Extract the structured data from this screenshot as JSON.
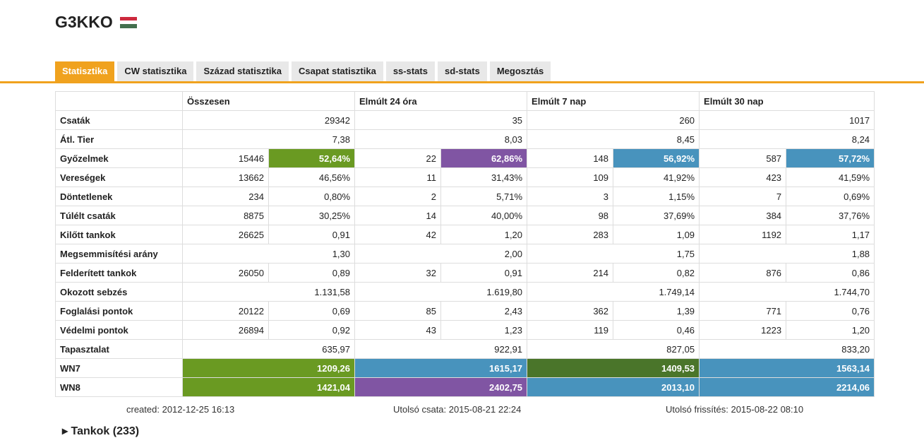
{
  "header": {
    "title": "G3KKO",
    "flag_colors": [
      "#cd2a3e",
      "#ffffff",
      "#436f4d"
    ]
  },
  "tabs": [
    {
      "label": "Statisztika",
      "active": true
    },
    {
      "label": "CW statisztika",
      "active": false
    },
    {
      "label": "Század statisztika",
      "active": false
    },
    {
      "label": "Csapat statisztika",
      "active": false
    },
    {
      "label": "ss-stats",
      "active": false
    },
    {
      "label": "sd-stats",
      "active": false
    },
    {
      "label": "Megosztás",
      "active": false
    }
  ],
  "table": {
    "columns": [
      "",
      "Összesen",
      "Elmúlt 24 óra",
      "Elmúlt 7 nap",
      "Elmúlt 30 nap"
    ],
    "rows": [
      {
        "label": "Csaták",
        "cells": [
          {
            "v": "29342"
          },
          {
            "v": "35"
          },
          {
            "v": "260"
          },
          {
            "v": "1017"
          }
        ]
      },
      {
        "label": "Átl. Tier",
        "cells": [
          {
            "v": "7,38"
          },
          {
            "v": "8,03"
          },
          {
            "v": "8,45"
          },
          {
            "v": "8,24"
          }
        ]
      },
      {
        "label": "Győzelmek",
        "cells": [
          {
            "a": "15446",
            "b": "52,64%",
            "bg": "#6a9a22"
          },
          {
            "a": "22",
            "b": "62,86%",
            "bg": "#8055a3"
          },
          {
            "a": "148",
            "b": "56,92%",
            "bg": "#4893bd"
          },
          {
            "a": "587",
            "b": "57,72%",
            "bg": "#4893bd"
          }
        ]
      },
      {
        "label": "Vereségek",
        "cells": [
          {
            "a": "13662",
            "b": "46,56%"
          },
          {
            "a": "11",
            "b": "31,43%"
          },
          {
            "a": "109",
            "b": "41,92%"
          },
          {
            "a": "423",
            "b": "41,59%"
          }
        ]
      },
      {
        "label": "Döntetlenek",
        "cells": [
          {
            "a": "234",
            "b": "0,80%"
          },
          {
            "a": "2",
            "b": "5,71%"
          },
          {
            "a": "3",
            "b": "1,15%"
          },
          {
            "a": "7",
            "b": "0,69%"
          }
        ]
      },
      {
        "label": "Túlélt csaták",
        "cells": [
          {
            "a": "8875",
            "b": "30,25%"
          },
          {
            "a": "14",
            "b": "40,00%"
          },
          {
            "a": "98",
            "b": "37,69%"
          },
          {
            "a": "384",
            "b": "37,76%"
          }
        ]
      },
      {
        "label": "Kilőtt tankok",
        "cells": [
          {
            "a": "26625",
            "b": "0,91"
          },
          {
            "a": "42",
            "b": "1,20"
          },
          {
            "a": "283",
            "b": "1,09"
          },
          {
            "a": "1192",
            "b": "1,17"
          }
        ]
      },
      {
        "label": "Megsemmisítési arány",
        "cells": [
          {
            "v": "1,30"
          },
          {
            "v": "2,00"
          },
          {
            "v": "1,75"
          },
          {
            "v": "1,88"
          }
        ]
      },
      {
        "label": "Felderített tankok",
        "cells": [
          {
            "a": "26050",
            "b": "0,89"
          },
          {
            "a": "32",
            "b": "0,91"
          },
          {
            "a": "214",
            "b": "0,82"
          },
          {
            "a": "876",
            "b": "0,86"
          }
        ]
      },
      {
        "label": "Okozott sebzés",
        "cells": [
          {
            "v": "1.131,58"
          },
          {
            "v": "1.619,80"
          },
          {
            "v": "1.749,14"
          },
          {
            "v": "1.744,70"
          }
        ]
      },
      {
        "label": "Foglalási pontok",
        "cells": [
          {
            "a": "20122",
            "b": "0,69"
          },
          {
            "a": "85",
            "b": "2,43"
          },
          {
            "a": "362",
            "b": "1,39"
          },
          {
            "a": "771",
            "b": "0,76"
          }
        ]
      },
      {
        "label": "Védelmi pontok",
        "cells": [
          {
            "a": "26894",
            "b": "0,92"
          },
          {
            "a": "43",
            "b": "1,23"
          },
          {
            "a": "119",
            "b": "0,46"
          },
          {
            "a": "1223",
            "b": "1,20"
          }
        ]
      },
      {
        "label": "Tapasztalat",
        "cells": [
          {
            "v": "635,97"
          },
          {
            "v": "922,91"
          },
          {
            "v": "827,05"
          },
          {
            "v": "833,20"
          }
        ]
      },
      {
        "label": "WN7",
        "cells": [
          {
            "v": "1209,26",
            "bg": "#6a9a22"
          },
          {
            "v": "1615,17",
            "bg": "#4893bd"
          },
          {
            "v": "1409,53",
            "bg": "#4a752a"
          },
          {
            "v": "1563,14",
            "bg": "#4893bd"
          }
        ]
      },
      {
        "label": "WN8",
        "cells": [
          {
            "v": "1421,04",
            "bg": "#6a9a22"
          },
          {
            "v": "2402,75",
            "bg": "#8055a3"
          },
          {
            "v": "2013,10",
            "bg": "#4893bd"
          },
          {
            "v": "2214,06",
            "bg": "#4893bd"
          }
        ]
      }
    ]
  },
  "footer": {
    "created": "created: 2012-12-25 16:13",
    "last_battle": "Utolsó csata: 2015-08-21 22:24",
    "last_update": "Utolsó frissítés: 2015-08-22 08:10"
  },
  "cut_off": "▸ Tankok (233)"
}
